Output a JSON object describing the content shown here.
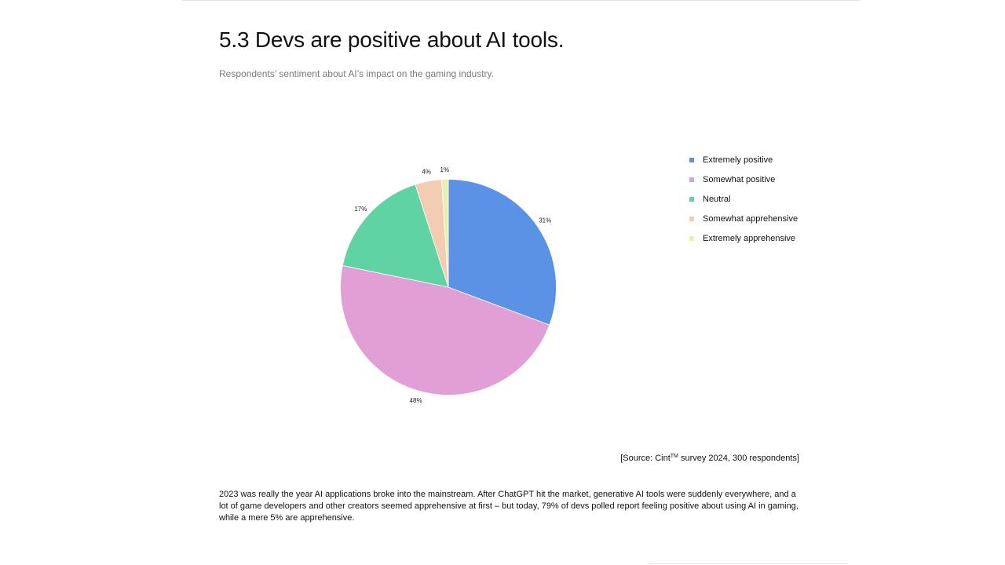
{
  "header": {
    "title": "5.3 Devs are positive about AI tools.",
    "subtitle": "Respondents’ sentiment about AI’s impact on the gaming industry."
  },
  "chart_data": {
    "type": "pie",
    "title": "Respondents’ sentiment about AI’s impact on the gaming industry.",
    "categories": [
      "Extremely positive",
      "Somewhat positive",
      "Neutral",
      "Somewhat apprehensive",
      "Extremely apprehensive"
    ],
    "values": [
      31,
      48,
      17,
      4,
      1
    ],
    "value_labels": [
      "31%",
      "48%",
      "17%",
      "4%",
      "1%"
    ],
    "colors": [
      "#5B92E5",
      "#E29FD6",
      "#5FD3A2",
      "#F2CDB3",
      "#E8F0B0"
    ],
    "start_angle": "12 o'clock, clockwise",
    "legend_position": "right"
  },
  "legend": {
    "items": [
      {
        "label": "Extremely positive",
        "color": "#5B92E5"
      },
      {
        "label": "Somewhat positive",
        "color": "#E29FD6"
      },
      {
        "label": "Neutral",
        "color": "#5FD3A2"
      },
      {
        "label": "Somewhat apprehensive",
        "color": "#F2CDB3"
      },
      {
        "label": "Extremely apprehensive",
        "color": "#E8F0B0"
      }
    ]
  },
  "source": {
    "prefix": "[Source: Cint",
    "tm": "TM",
    "suffix": " survey 2024, 300 respondents]"
  },
  "body": {
    "paragraph": "2023 was really the year AI applications broke into the mainstream. After ChatGPT hit the market, generative AI tools were suddenly everywhere, and a lot of game developers and other creators seemed apprehensive at first – but today, 79% of devs polled report feeling positive about using AI in gaming, while a mere 5% are apprehensive."
  }
}
